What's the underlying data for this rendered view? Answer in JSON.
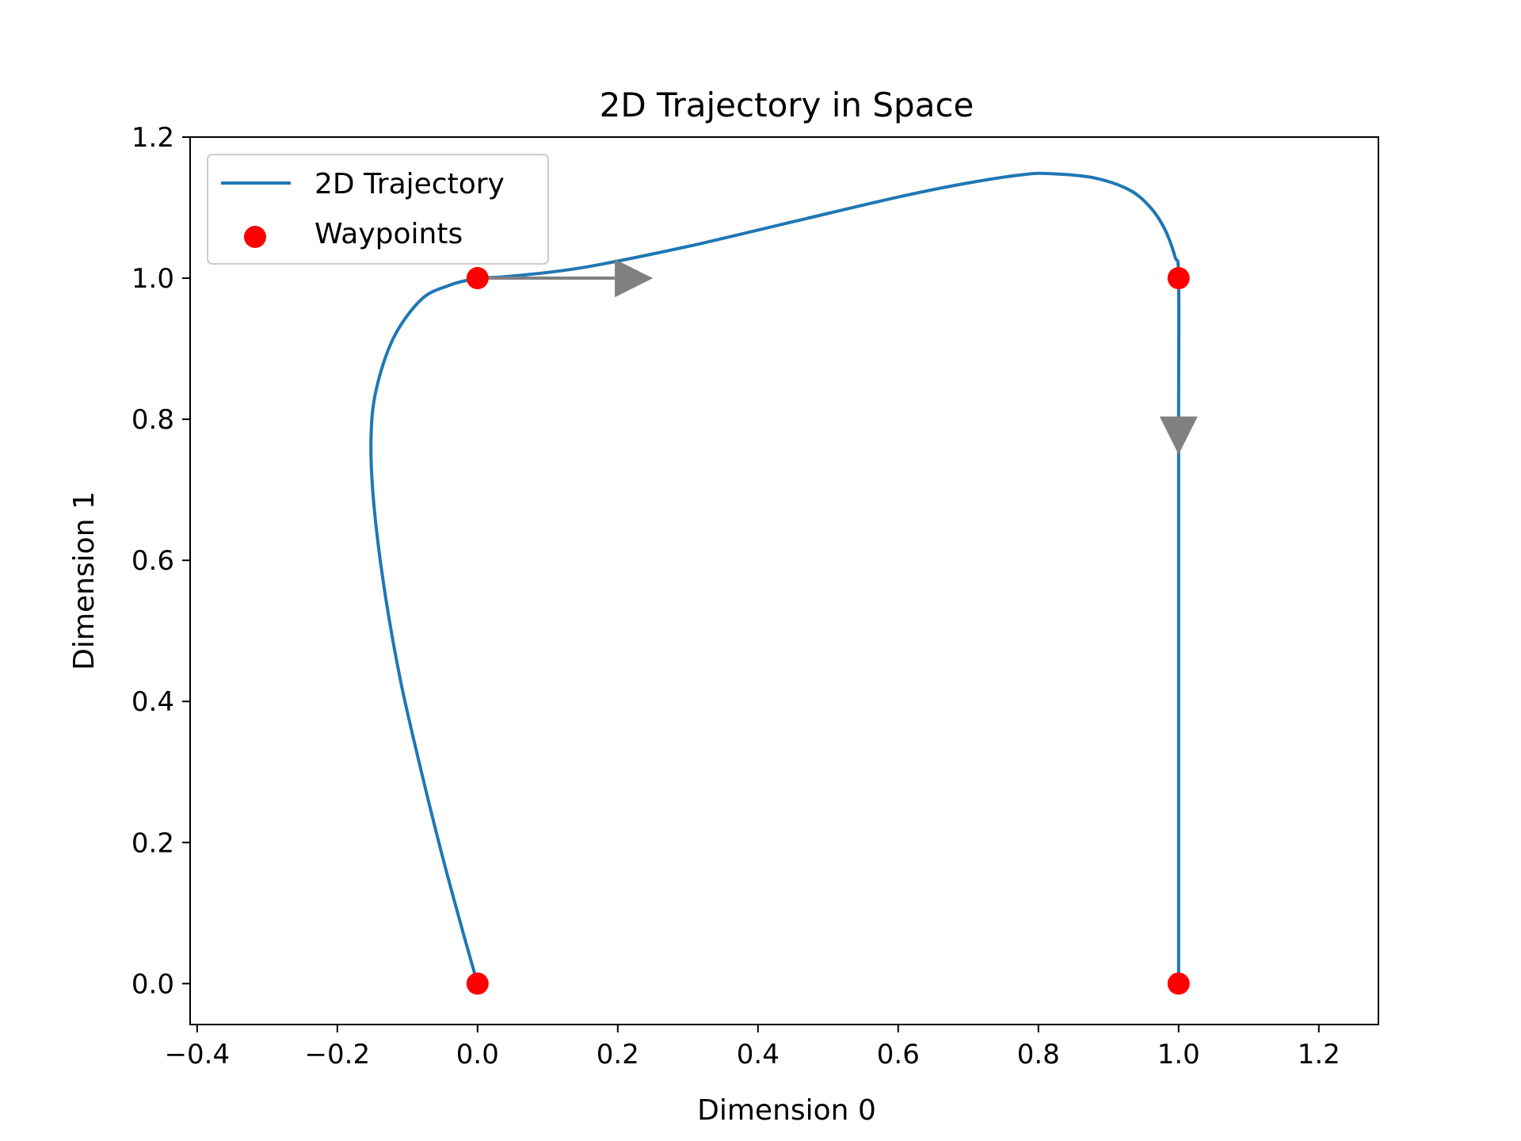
{
  "chart_data": {
    "type": "line",
    "title": "2D Trajectory in Space",
    "xlabel": "Dimension 0",
    "ylabel": "Dimension 1",
    "xlim": [
      -0.41,
      1.285
    ],
    "ylim": [
      -0.058,
      1.2
    ],
    "xticks": [
      -0.4,
      -0.2,
      0.0,
      0.2,
      0.4,
      0.6,
      0.8,
      1.0,
      1.2
    ],
    "xtick_labels": [
      "−0.4",
      "−0.2",
      "0.0",
      "0.2",
      "0.4",
      "0.6",
      "0.8",
      "1.0",
      "1.2"
    ],
    "yticks": [
      0.0,
      0.2,
      0.4,
      0.6,
      0.8,
      1.0,
      1.2
    ],
    "ytick_labels": [
      "0.0",
      "0.2",
      "0.4",
      "0.6",
      "0.8",
      "1.0",
      "1.2"
    ],
    "grid": false,
    "legend": {
      "location": "top-left",
      "entries": [
        "2D Trajectory",
        "Waypoints"
      ]
    },
    "series": [
      {
        "name": "2D Trajectory",
        "kind": "line",
        "color": "#1f77b4",
        "x": [
          0.0,
          -0.02,
          -0.05,
          -0.08,
          -0.11,
          -0.133,
          -0.148,
          -0.152,
          -0.145,
          -0.12,
          -0.08,
          -0.04,
          -0.01,
          0.0,
          0.05,
          0.15,
          0.3,
          0.45,
          0.6,
          0.7,
          0.78,
          0.82,
          0.88,
          0.93,
          0.96,
          0.98,
          0.995,
          1.0,
          1.0,
          1.0,
          1.0
        ],
        "y": [
          0.0,
          0.07,
          0.18,
          0.3,
          0.43,
          0.56,
          0.68,
          0.77,
          0.84,
          0.915,
          0.97,
          0.99,
          0.998,
          1.0,
          1.003,
          1.015,
          1.045,
          1.08,
          1.115,
          1.135,
          1.147,
          1.148,
          1.142,
          1.125,
          1.1,
          1.07,
          1.03,
          1.0,
          0.8,
          0.4,
          0.0
        ]
      },
      {
        "name": "Waypoints",
        "kind": "scatter",
        "color": "#ff0000",
        "x": [
          0.0,
          0.0,
          1.0,
          1.0
        ],
        "y": [
          0.0,
          1.0,
          1.0,
          0.0
        ]
      }
    ],
    "arrows": [
      {
        "x": 0.0,
        "y": 1.0,
        "dx": 0.25,
        "dy": 0.0,
        "color": "#808080"
      },
      {
        "x": 1.0,
        "y": 0.8,
        "dx": 0.0,
        "dy": -0.05,
        "color": "#808080"
      }
    ]
  }
}
